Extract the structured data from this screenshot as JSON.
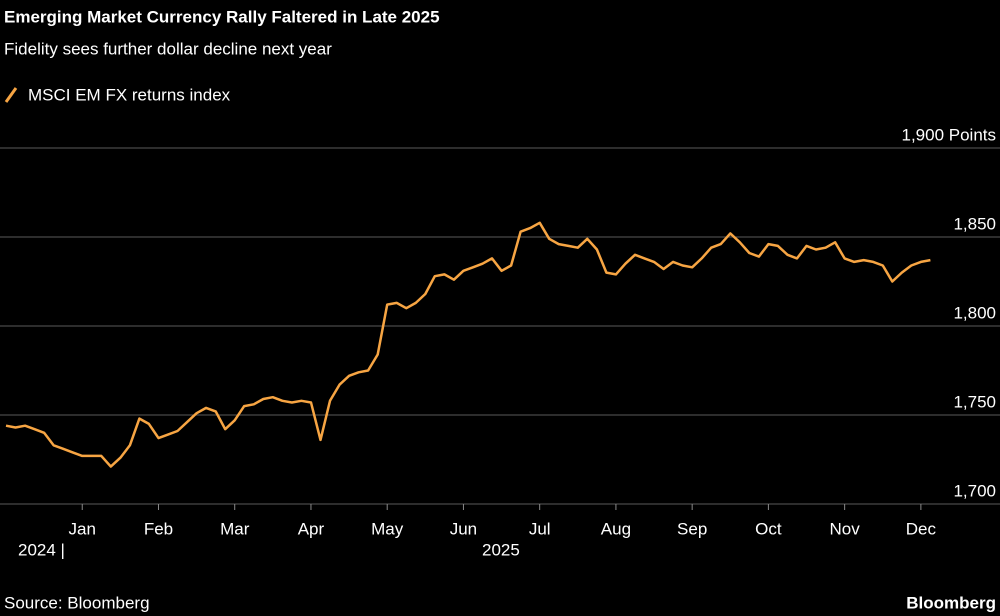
{
  "chart_data": {
    "type": "line",
    "title": "Emerging Market Currency Rally Faltered in Late 2025",
    "subtitle": "Fidelity sees further dollar decline next year",
    "source": "Source: Bloomberg",
    "brand": "Bloomberg",
    "year_labels": [
      "2024 |",
      "2025"
    ],
    "categories": [
      null,
      null,
      null,
      null,
      null,
      null,
      null,
      null,
      "Jan",
      null,
      null,
      null,
      null,
      null,
      null,
      null,
      "Feb",
      null,
      null,
      null,
      null,
      null,
      null,
      null,
      "Mar",
      null,
      null,
      null,
      null,
      null,
      null,
      null,
      "Apr",
      null,
      null,
      null,
      null,
      null,
      null,
      null,
      "May",
      null,
      null,
      null,
      null,
      null,
      null,
      null,
      "Jun",
      null,
      null,
      null,
      null,
      null,
      null,
      null,
      "Jul",
      null,
      null,
      null,
      null,
      null,
      null,
      null,
      "Aug",
      null,
      null,
      null,
      null,
      null,
      null,
      null,
      "Sep",
      null,
      null,
      null,
      null,
      null,
      null,
      null,
      "Oct",
      null,
      null,
      null,
      null,
      null,
      null,
      null,
      "Nov",
      null,
      null,
      null,
      null,
      null,
      null,
      null,
      "Dec",
      null
    ],
    "series": [
      {
        "name": "MSCI EM FX returns index",
        "color": "#f7a543",
        "values": [
          1744,
          1743,
          1744,
          1742,
          1740,
          1733,
          1731,
          1729,
          1727,
          1727,
          1727,
          1721,
          1726,
          1733,
          1748,
          1745,
          1737,
          1739,
          1741,
          1746,
          1751,
          1754,
          1752,
          1742,
          1747,
          1755,
          1756,
          1759,
          1760,
          1758,
          1757,
          1758,
          1757,
          1736,
          1758,
          1767,
          1772,
          1774,
          1775,
          1784,
          1812,
          1813,
          1810,
          1813,
          1818,
          1828,
          1829,
          1826,
          1831,
          1833,
          1835,
          1838,
          1831,
          1834,
          1853,
          1855,
          1858,
          1849,
          1846,
          1845,
          1844,
          1849,
          1843,
          1830,
          1829,
          1835,
          1840,
          1838,
          1836,
          1832,
          1836,
          1834,
          1833,
          1838,
          1844,
          1846,
          1852,
          1847,
          1841,
          1839,
          1846,
          1845,
          1840,
          1838,
          1845,
          1843,
          1844,
          1847,
          1838,
          1836,
          1837,
          1836,
          1834,
          1825,
          1830,
          1834,
          1836,
          1837
        ]
      }
    ],
    "ylim": [
      1700,
      1900
    ],
    "yticks": [
      {
        "value": 1700,
        "label": "1,700"
      },
      {
        "value": 1750,
        "label": "1,750"
      },
      {
        "value": 1800,
        "label": "1,800"
      },
      {
        "value": 1850,
        "label": "1,850"
      },
      {
        "value": 1900,
        "label": "1,900 Points"
      }
    ],
    "grid": true
  }
}
